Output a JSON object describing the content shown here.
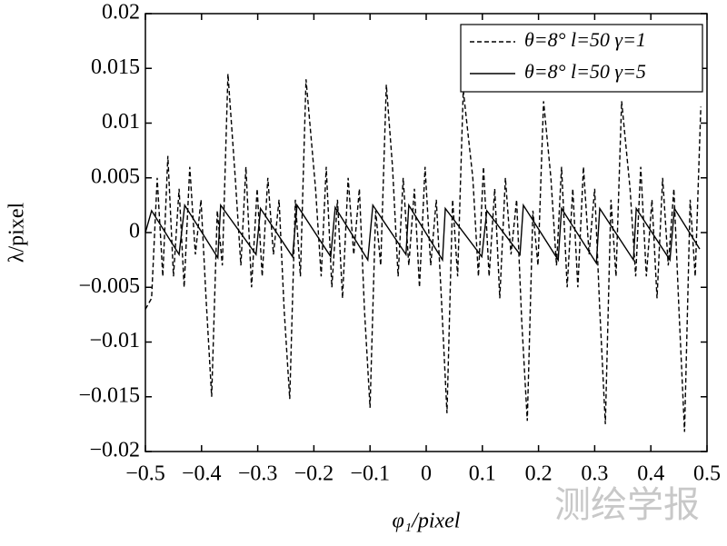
{
  "chart_data": {
    "type": "line",
    "xlabel": "φ₁/pixel",
    "ylabel": "λ/pixel",
    "watermark": "测绘学报",
    "xlim": [
      -0.5,
      0.5
    ],
    "xticks": [
      {
        "value": -0.5,
        "label": "−0.5"
      },
      {
        "value": -0.4,
        "label": "−0.4"
      },
      {
        "value": -0.3,
        "label": "−0.3"
      },
      {
        "value": -0.2,
        "label": "−0.2"
      },
      {
        "value": -0.1,
        "label": "−0.1"
      },
      0,
      0.1,
      0.2,
      0.3,
      0.4,
      0.5
    ],
    "ylim": [
      -0.02,
      0.02
    ],
    "yticks": [
      {
        "value": -0.02,
        "label": "−0.02"
      },
      {
        "value": -0.015,
        "label": "−0.015"
      },
      {
        "value": -0.01,
        "label": "−0.01"
      },
      {
        "value": -0.005,
        "label": "−0.005"
      },
      0,
      0.005,
      0.01,
      0.015,
      0.02
    ],
    "legend": "upper right",
    "series": [
      {
        "name": "θ=8° l=50  γ=1",
        "color": "#000000",
        "style": "dashed",
        "x": [
          -0.5,
          -0.489,
          -0.479,
          -0.469,
          -0.46,
          -0.45,
          -0.44,
          -0.431,
          -0.421,
          -0.411,
          -0.401,
          -0.392,
          -0.382,
          -0.372,
          -0.363,
          -0.353,
          -0.34,
          -0.33,
          -0.321,
          -0.311,
          -0.301,
          -0.292,
          -0.282,
          -0.272,
          -0.262,
          -0.253,
          -0.243,
          -0.233,
          -0.224,
          -0.214,
          -0.197,
          -0.187,
          -0.178,
          -0.168,
          -0.158,
          -0.149,
          -0.139,
          -0.129,
          -0.119,
          -0.11,
          -0.1,
          -0.09,
          -0.081,
          -0.071,
          -0.06,
          -0.05,
          -0.041,
          -0.031,
          -0.021,
          -0.012,
          -0.002,
          0.008,
          0.018,
          0.027,
          0.037,
          0.047,
          0.056,
          0.066,
          0.083,
          0.093,
          0.102,
          0.112,
          0.122,
          0.131,
          0.141,
          0.151,
          0.161,
          0.17,
          0.18,
          0.19,
          0.199,
          0.209,
          0.222,
          0.232,
          0.241,
          0.251,
          0.261,
          0.27,
          0.28,
          0.29,
          0.3,
          0.309,
          0.319,
          0.329,
          0.338,
          0.348,
          0.363,
          0.373,
          0.382,
          0.392,
          0.402,
          0.411,
          0.421,
          0.431,
          0.441,
          0.45,
          0.46,
          0.47,
          0.479,
          0.489
        ],
        "values": [
          -0.007,
          -0.006,
          0.005,
          -0.004,
          0.007,
          -0.004,
          0.004,
          -0.005,
          0.006,
          -0.002,
          0.003,
          -0.006,
          -0.015,
          0.002,
          -0.003,
          0.0145,
          0.005,
          -0.003,
          0.006,
          -0.005,
          0.004,
          -0.004,
          0.005,
          -0.002,
          0.003,
          -0.007,
          -0.0152,
          0.003,
          -0.004,
          0.014,
          0.004,
          -0.004,
          0.006,
          -0.005,
          0.003,
          -0.006,
          0.005,
          -0.002,
          0.004,
          -0.007,
          -0.016,
          0.002,
          -0.003,
          0.0135,
          0.006,
          -0.004,
          0.005,
          -0.003,
          0.004,
          -0.005,
          0.006,
          -0.003,
          0.003,
          -0.006,
          -0.0165,
          0.003,
          -0.004,
          0.013,
          0.005,
          -0.004,
          0.006,
          -0.004,
          0.004,
          -0.006,
          0.005,
          -0.002,
          0.003,
          -0.008,
          -0.0172,
          0.002,
          -0.003,
          0.012,
          0.005,
          -0.003,
          0.006,
          -0.005,
          0.004,
          -0.005,
          0.006,
          -0.002,
          0.004,
          -0.007,
          -0.0175,
          0.003,
          -0.004,
          0.012,
          0.004,
          -0.004,
          0.006,
          -0.004,
          0.003,
          -0.006,
          0.005,
          -0.003,
          0.004,
          -0.007,
          -0.0182,
          0.003,
          -0.004,
          0.0115
        ]
      },
      {
        "name": "θ=8° l=50  γ=5",
        "color": "#000000",
        "style": "solid",
        "x": [
          -0.5,
          -0.489,
          -0.44,
          -0.43,
          -0.371,
          -0.366,
          -0.303,
          -0.295,
          -0.238,
          -0.23,
          -0.17,
          -0.162,
          -0.104,
          -0.095,
          -0.036,
          -0.031,
          0.029,
          0.034,
          0.099,
          0.108,
          0.167,
          0.173,
          0.235,
          0.241,
          0.303,
          0.309,
          0.369,
          0.374,
          0.434,
          0.442,
          0.487
        ],
        "values": [
          0.0,
          0.002,
          -0.002,
          0.0025,
          -0.0023,
          0.0025,
          -0.002,
          0.0022,
          -0.0022,
          0.0025,
          -0.0022,
          0.0023,
          -0.0025,
          0.0025,
          -0.002,
          0.0025,
          -0.0025,
          0.0022,
          -0.0022,
          0.002,
          -0.002,
          0.0025,
          -0.0025,
          0.0022,
          -0.0028,
          0.0022,
          -0.0025,
          0.0022,
          -0.0025,
          0.0022,
          -0.0015
        ]
      }
    ]
  }
}
